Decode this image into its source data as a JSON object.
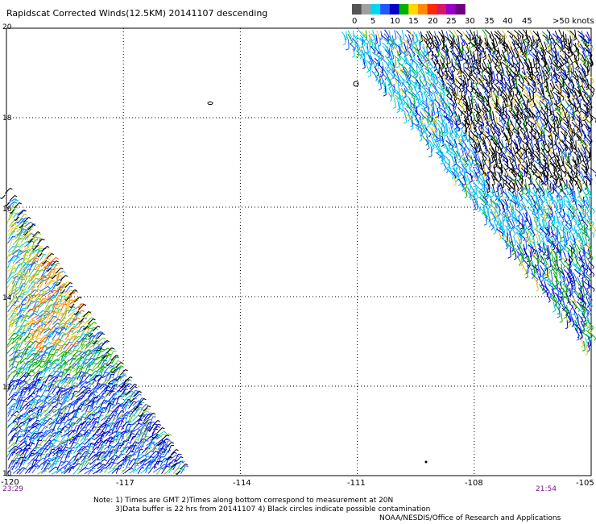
{
  "title": "Rapidscat Corrected Winds(12.5KM) 20141107 descending",
  "legend": {
    "ticks": [
      "0",
      "5",
      "10",
      "15",
      "20",
      "25",
      "30",
      "35",
      "40",
      "45",
      ">50 knots"
    ],
    "colors": [
      "#555555",
      "#a0a0a0",
      "#00d8f0",
      "#1f5aff",
      "#0000c8",
      "#00b000",
      "#ffd800",
      "#ff8c00",
      "#ff2800",
      "#d81860",
      "#9600c8",
      "#6e007e"
    ]
  },
  "axes": {
    "lat_labels": [
      "20",
      "18",
      "16",
      "14",
      "12",
      "10"
    ],
    "lon_labels": [
      "-120",
      "-117",
      "-114",
      "-111",
      "-108",
      "-105"
    ]
  },
  "times": {
    "left": "23:29",
    "right": "21:54"
  },
  "notes": {
    "line1": "Note: 1) Times are GMT 2)Times along bottom correspond to measurement at 20N",
    "line2": "3)Data buffer is 22 hrs from 20141107 4) Black circles indicate possible contamination",
    "line3": "NOAA/NESDIS/Office of Research and Applications"
  },
  "map_data": {
    "lat_range": [
      10,
      20
    ],
    "lon_range": [
      -120,
      -105
    ],
    "grid_step_deg": {
      "lat": 2,
      "lon": 3
    },
    "swaths": [
      {
        "name": "west-swath",
        "dominant_speed_knots": "10-25"
      },
      {
        "name": "east-swath",
        "dominant_speed_knots": "5-15"
      }
    ]
  }
}
